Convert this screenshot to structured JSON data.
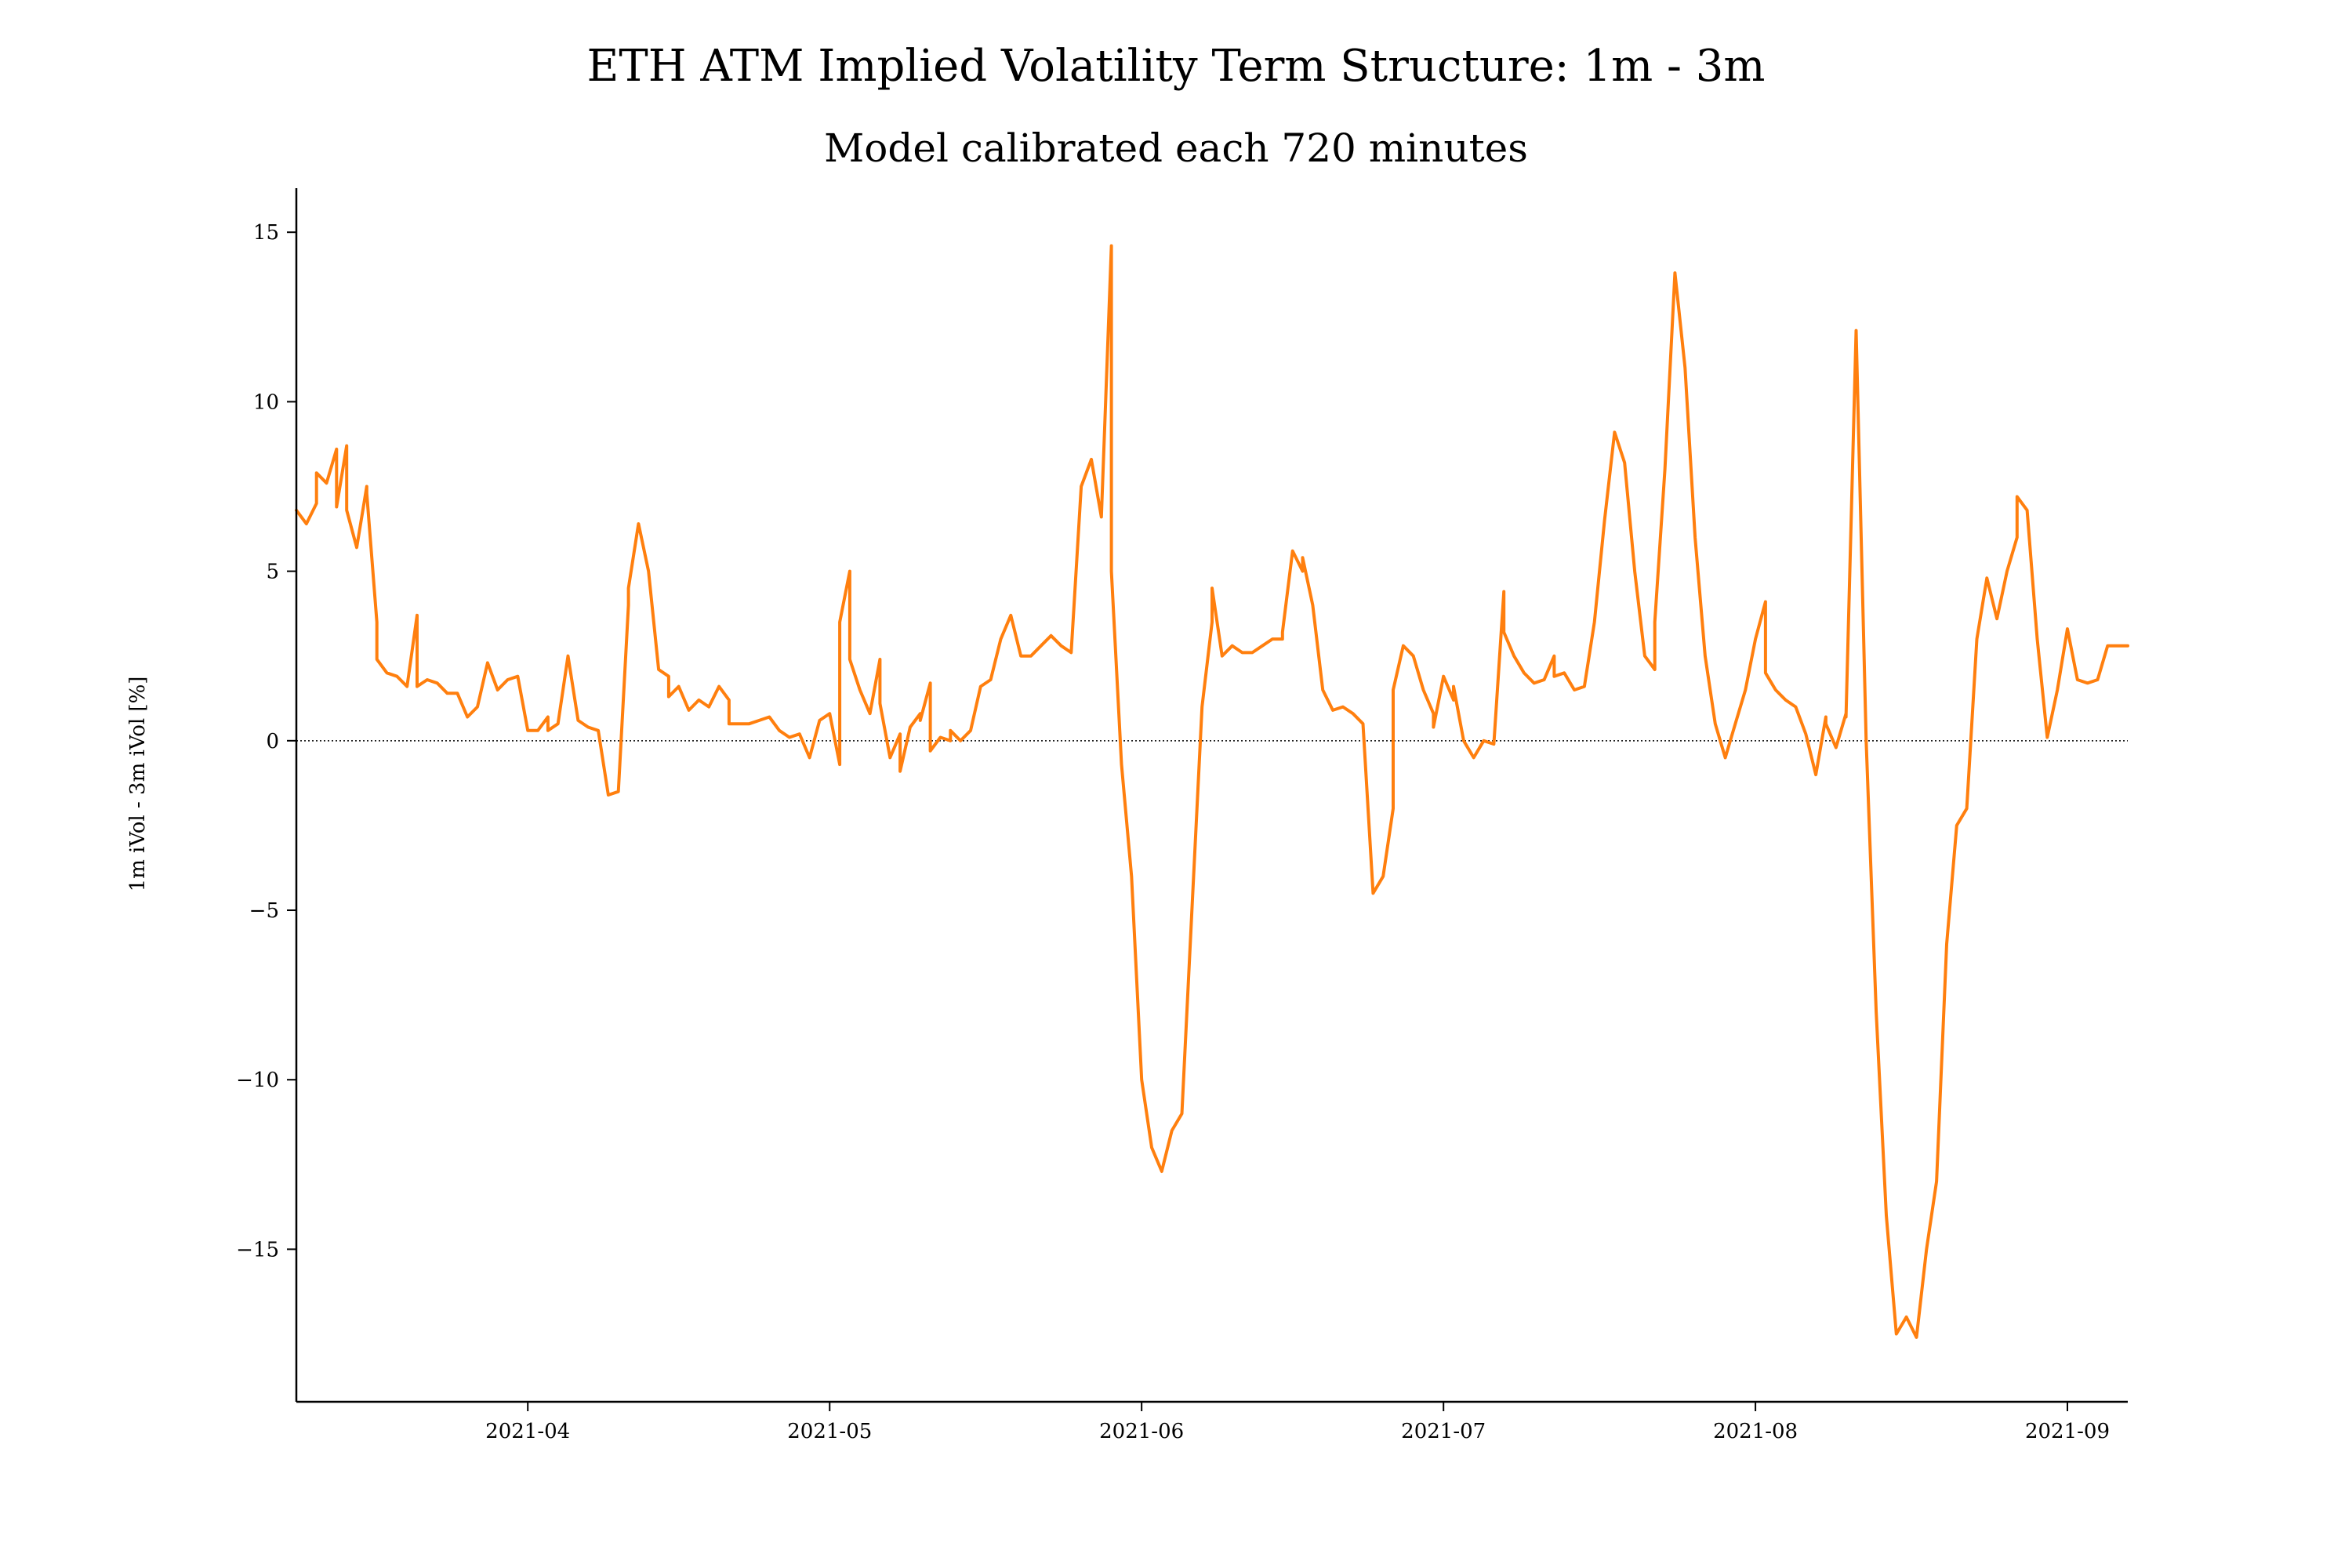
{
  "chart_data": {
    "type": "line",
    "title": "ETH ATM Implied Volatility Term Structure: 1m - 3m",
    "subtitle": "Model calibrated each 720 minutes",
    "xlabel": "",
    "ylabel": "1m iVol - 3m iVol [%]",
    "xlim": [
      "2021-03-09",
      "2021-09-07"
    ],
    "ylim": [
      -19.5,
      16.3
    ],
    "x_tick_labels": [
      "2021-04",
      "2021-05",
      "2021-06",
      "2021-07",
      "2021-08",
      "2021-09"
    ],
    "y_ticks": [
      15,
      10,
      5,
      0,
      -5,
      -10,
      -15
    ],
    "y_tick_labels": [
      "15",
      "10",
      "5",
      "0",
      "−5",
      "−10",
      "−15"
    ],
    "reference_line": {
      "y": 0,
      "style": "dotted"
    },
    "grid": false,
    "line_color": "#ff7f0e",
    "series": [
      {
        "values": [
          [
            "2021-03-09",
            6.8
          ],
          [
            "2021-03-10",
            6.4
          ],
          [
            "2021-03-11",
            7.0
          ],
          [
            "2021-03-11",
            7.9
          ],
          [
            "2021-03-12",
            7.6
          ],
          [
            "2021-03-13",
            8.6
          ],
          [
            "2021-03-13",
            6.9
          ],
          [
            "2021-03-14",
            8.7
          ],
          [
            "2021-03-14",
            6.8
          ],
          [
            "2021-03-15",
            5.7
          ],
          [
            "2021-03-16",
            7.5
          ],
          [
            "2021-03-16",
            7.3
          ],
          [
            "2021-03-17",
            3.5
          ],
          [
            "2021-03-17",
            2.4
          ],
          [
            "2021-03-18",
            2.0
          ],
          [
            "2021-03-19",
            1.9
          ],
          [
            "2021-03-20",
            1.6
          ],
          [
            "2021-03-21",
            3.7
          ],
          [
            "2021-03-21",
            1.6
          ],
          [
            "2021-03-22",
            1.8
          ],
          [
            "2021-03-23",
            1.7
          ],
          [
            "2021-03-24",
            1.4
          ],
          [
            "2021-03-25",
            1.4
          ],
          [
            "2021-03-26",
            0.7
          ],
          [
            "2021-03-27",
            1.0
          ],
          [
            "2021-03-28",
            2.3
          ],
          [
            "2021-03-29",
            1.5
          ],
          [
            "2021-03-30",
            1.8
          ],
          [
            "2021-03-31",
            1.9
          ],
          [
            "2021-04-01",
            0.3
          ],
          [
            "2021-04-02",
            0.3
          ],
          [
            "2021-04-03",
            0.7
          ],
          [
            "2021-04-03",
            0.3
          ],
          [
            "2021-04-04",
            0.5
          ],
          [
            "2021-04-05",
            2.5
          ],
          [
            "2021-04-06",
            0.6
          ],
          [
            "2021-04-07",
            0.4
          ],
          [
            "2021-04-08",
            0.3
          ],
          [
            "2021-04-09",
            -1.6
          ],
          [
            "2021-04-10",
            -1.5
          ],
          [
            "2021-04-11",
            4.0
          ],
          [
            "2021-04-11",
            4.5
          ],
          [
            "2021-04-12",
            6.4
          ],
          [
            "2021-04-13",
            5.0
          ],
          [
            "2021-04-14",
            2.1
          ],
          [
            "2021-04-15",
            1.9
          ],
          [
            "2021-04-15",
            1.3
          ],
          [
            "2021-04-16",
            1.6
          ],
          [
            "2021-04-17",
            0.9
          ],
          [
            "2021-04-18",
            1.2
          ],
          [
            "2021-04-19",
            1.0
          ],
          [
            "2021-04-20",
            1.6
          ],
          [
            "2021-04-21",
            1.2
          ],
          [
            "2021-04-21",
            0.5
          ],
          [
            "2021-04-22",
            0.5
          ],
          [
            "2021-04-23",
            0.5
          ],
          [
            "2021-04-24",
            0.6
          ],
          [
            "2021-04-25",
            0.7
          ],
          [
            "2021-04-26",
            0.3
          ],
          [
            "2021-04-27",
            0.1
          ],
          [
            "2021-04-28",
            0.2
          ],
          [
            "2021-04-29",
            -0.5
          ],
          [
            "2021-04-30",
            0.6
          ],
          [
            "2021-05-01",
            0.8
          ],
          [
            "2021-05-02",
            -0.7
          ],
          [
            "2021-05-02",
            3.5
          ],
          [
            "2021-05-03",
            5.0
          ],
          [
            "2021-05-03",
            2.4
          ],
          [
            "2021-05-04",
            1.5
          ],
          [
            "2021-05-05",
            0.8
          ],
          [
            "2021-05-06",
            2.4
          ],
          [
            "2021-05-06",
            1.1
          ],
          [
            "2021-05-07",
            -0.5
          ],
          [
            "2021-05-08",
            0.2
          ],
          [
            "2021-05-08",
            -0.9
          ],
          [
            "2021-05-09",
            0.4
          ],
          [
            "2021-05-10",
            0.8
          ],
          [
            "2021-05-10",
            0.6
          ],
          [
            "2021-05-11",
            1.7
          ],
          [
            "2021-05-11",
            -0.3
          ],
          [
            "2021-05-12",
            0.1
          ],
          [
            "2021-05-13",
            0.0
          ],
          [
            "2021-05-13",
            0.3
          ],
          [
            "2021-05-14",
            0.0
          ],
          [
            "2021-05-15",
            0.3
          ],
          [
            "2021-05-16",
            1.6
          ],
          [
            "2021-05-17",
            1.8
          ],
          [
            "2021-05-18",
            3.0
          ],
          [
            "2021-05-19",
            3.7
          ],
          [
            "2021-05-20",
            2.5
          ],
          [
            "2021-05-21",
            2.5
          ],
          [
            "2021-05-22",
            2.8
          ],
          [
            "2021-05-23",
            3.1
          ],
          [
            "2021-05-24",
            2.8
          ],
          [
            "2021-05-25",
            2.6
          ],
          [
            "2021-05-25",
            2.6
          ],
          [
            "2021-05-26",
            7.5
          ],
          [
            "2021-05-27",
            8.3
          ],
          [
            "2021-05-28",
            6.6
          ],
          [
            "2021-05-29",
            14.6
          ],
          [
            "2021-05-29",
            5.0
          ],
          [
            "2021-05-30",
            -0.7
          ],
          [
            "2021-05-31",
            -4.0
          ],
          [
            "2021-06-01",
            -10.0
          ],
          [
            "2021-06-02",
            -12.0
          ],
          [
            "2021-06-03",
            -12.7
          ],
          [
            "2021-06-04",
            -11.5
          ],
          [
            "2021-06-05",
            -11.0
          ],
          [
            "2021-06-06",
            -5.0
          ],
          [
            "2021-06-07",
            1.0
          ],
          [
            "2021-06-08",
            3.5
          ],
          [
            "2021-06-08",
            4.5
          ],
          [
            "2021-06-09",
            2.5
          ],
          [
            "2021-06-10",
            2.8
          ],
          [
            "2021-06-11",
            2.6
          ],
          [
            "2021-06-12",
            2.6
          ],
          [
            "2021-06-13",
            2.8
          ],
          [
            "2021-06-14",
            3.0
          ],
          [
            "2021-06-15",
            3.0
          ],
          [
            "2021-06-15",
            3.2
          ],
          [
            "2021-06-16",
            5.6
          ],
          [
            "2021-06-17",
            5.0
          ],
          [
            "2021-06-17",
            5.4
          ],
          [
            "2021-06-18",
            4.0
          ],
          [
            "2021-06-19",
            1.5
          ],
          [
            "2021-06-20",
            0.9
          ],
          [
            "2021-06-21",
            1.0
          ],
          [
            "2021-06-22",
            0.8
          ],
          [
            "2021-06-23",
            0.5
          ],
          [
            "2021-06-24",
            -4.5
          ],
          [
            "2021-06-25",
            -4.0
          ],
          [
            "2021-06-26",
            -2.0
          ],
          [
            "2021-06-26",
            1.5
          ],
          [
            "2021-06-27",
            2.8
          ],
          [
            "2021-06-28",
            2.5
          ],
          [
            "2021-06-29",
            1.5
          ],
          [
            "2021-06-30",
            0.8
          ],
          [
            "2021-06-30",
            0.4
          ],
          [
            "2021-07-01",
            1.9
          ],
          [
            "2021-07-02",
            1.2
          ],
          [
            "2021-07-02",
            1.6
          ],
          [
            "2021-07-03",
            0.0
          ],
          [
            "2021-07-04",
            -0.5
          ],
          [
            "2021-07-05",
            0.0
          ],
          [
            "2021-07-06",
            -0.1
          ],
          [
            "2021-07-07",
            4.4
          ],
          [
            "2021-07-07",
            3.2
          ],
          [
            "2021-07-08",
            2.5
          ],
          [
            "2021-07-09",
            2.0
          ],
          [
            "2021-07-10",
            1.7
          ],
          [
            "2021-07-11",
            1.8
          ],
          [
            "2021-07-12",
            2.5
          ],
          [
            "2021-07-12",
            1.9
          ],
          [
            "2021-07-13",
            2.0
          ],
          [
            "2021-07-14",
            1.5
          ],
          [
            "2021-07-15",
            1.6
          ],
          [
            "2021-07-16",
            3.5
          ],
          [
            "2021-07-17",
            6.5
          ],
          [
            "2021-07-18",
            9.1
          ],
          [
            "2021-07-19",
            8.2
          ],
          [
            "2021-07-20",
            5.0
          ],
          [
            "2021-07-21",
            2.5
          ],
          [
            "2021-07-22",
            2.1
          ],
          [
            "2021-07-22",
            3.5
          ],
          [
            "2021-07-23",
            8.0
          ],
          [
            "2021-07-24",
            13.8
          ],
          [
            "2021-07-25",
            11.0
          ],
          [
            "2021-07-26",
            6.0
          ],
          [
            "2021-07-27",
            2.5
          ],
          [
            "2021-07-28",
            0.5
          ],
          [
            "2021-07-29",
            -0.5
          ],
          [
            "2021-07-30",
            0.5
          ],
          [
            "2021-07-31",
            1.5
          ],
          [
            "2021-08-01",
            3.0
          ],
          [
            "2021-08-02",
            4.1
          ],
          [
            "2021-08-02",
            2.0
          ],
          [
            "2021-08-03",
            1.5
          ],
          [
            "2021-08-04",
            1.2
          ],
          [
            "2021-08-05",
            1.0
          ],
          [
            "2021-08-06",
            0.2
          ],
          [
            "2021-08-07",
            -1.0
          ],
          [
            "2021-08-08",
            0.7
          ],
          [
            "2021-08-08",
            0.5
          ],
          [
            "2021-08-09",
            -0.2
          ],
          [
            "2021-08-10",
            0.8
          ],
          [
            "2021-08-10",
            0.7
          ],
          [
            "2021-08-11",
            12.1
          ],
          [
            "2021-08-12",
            0.0
          ],
          [
            "2021-08-13",
            -8.0
          ],
          [
            "2021-08-14",
            -14.0
          ],
          [
            "2021-08-15",
            -17.5
          ],
          [
            "2021-08-16",
            -17.0
          ],
          [
            "2021-08-17",
            -17.6
          ],
          [
            "2021-08-18",
            -15.0
          ],
          [
            "2021-08-19",
            -13.0
          ],
          [
            "2021-08-20",
            -6.0
          ],
          [
            "2021-08-21",
            -2.5
          ],
          [
            "2021-08-22",
            -2.0
          ],
          [
            "2021-08-23",
            3.0
          ],
          [
            "2021-08-24",
            4.8
          ],
          [
            "2021-08-25",
            3.6
          ],
          [
            "2021-08-26",
            5.0
          ],
          [
            "2021-08-27",
            6.0
          ],
          [
            "2021-08-27",
            7.2
          ],
          [
            "2021-08-28",
            6.8
          ],
          [
            "2021-08-29",
            3.0
          ],
          [
            "2021-08-30",
            0.1
          ],
          [
            "2021-08-31",
            1.5
          ],
          [
            "2021-09-01",
            3.3
          ],
          [
            "2021-09-02",
            1.8
          ],
          [
            "2021-09-03",
            1.7
          ],
          [
            "2021-09-04",
            1.8
          ],
          [
            "2021-09-05",
            2.8
          ],
          [
            "2021-09-06",
            2.8
          ],
          [
            "2021-09-07",
            2.8
          ]
        ]
      }
    ]
  }
}
